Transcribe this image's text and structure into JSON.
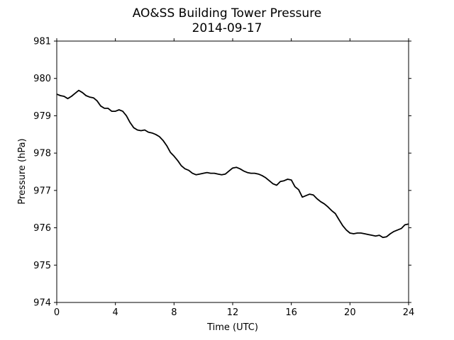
{
  "chart_data": {
    "type": "line",
    "title": "AO&SS Building Tower Pressure",
    "subtitle": "2014-09-17",
    "xlabel": "Time (UTC)",
    "ylabel": "Pressure (hPa)",
    "xlim": [
      0,
      24
    ],
    "ylim": [
      974,
      981
    ],
    "x_ticks": [
      0,
      4,
      8,
      12,
      16,
      20,
      24
    ],
    "y_ticks": [
      974,
      975,
      976,
      977,
      978,
      979,
      980,
      981
    ],
    "grid": false,
    "line_color": "#000000",
    "series": [
      {
        "x": [
          0.0,
          0.25,
          0.5,
          0.75,
          1.0,
          1.25,
          1.5,
          1.75,
          2.0,
          2.25,
          2.5,
          2.75,
          3.0,
          3.25,
          3.5,
          3.75,
          4.0,
          4.25,
          4.5,
          4.75,
          5.0,
          5.25,
          5.5,
          5.75,
          6.0,
          6.25,
          6.5,
          6.75,
          7.0,
          7.25,
          7.5,
          7.75,
          8.0,
          8.25,
          8.5,
          8.75,
          9.0,
          9.25,
          9.5,
          9.75,
          10.0,
          10.25,
          10.5,
          10.75,
          11.0,
          11.25,
          11.5,
          11.75,
          12.0,
          12.25,
          12.5,
          12.75,
          13.0,
          13.25,
          13.5,
          13.75,
          14.0,
          14.25,
          14.5,
          14.75,
          15.0,
          15.25,
          15.5,
          15.75,
          16.0,
          16.25,
          16.5,
          16.75,
          17.0,
          17.25,
          17.5,
          17.75,
          18.0,
          18.25,
          18.5,
          18.75,
          19.0,
          19.25,
          19.5,
          19.75,
          20.0,
          20.25,
          20.5,
          20.75,
          21.0,
          21.25,
          21.5,
          21.75,
          22.0,
          22.25,
          22.5,
          22.75,
          23.0,
          23.25,
          23.5,
          23.75,
          24.0
        ],
        "y": [
          979.58,
          979.54,
          979.52,
          979.46,
          979.52,
          979.6,
          979.68,
          979.62,
          979.54,
          979.5,
          979.48,
          979.4,
          979.26,
          979.2,
          979.2,
          979.12,
          979.12,
          979.16,
          979.12,
          979.0,
          978.82,
          978.68,
          978.62,
          978.6,
          978.62,
          978.56,
          978.54,
          978.5,
          978.44,
          978.34,
          978.2,
          978.02,
          977.92,
          977.8,
          977.66,
          977.58,
          977.54,
          977.46,
          977.42,
          977.44,
          977.46,
          977.48,
          977.46,
          977.46,
          977.44,
          977.42,
          977.44,
          977.52,
          977.6,
          977.62,
          977.58,
          977.52,
          977.48,
          977.46,
          977.46,
          977.44,
          977.4,
          977.34,
          977.26,
          977.18,
          977.14,
          977.24,
          977.26,
          977.3,
          977.28,
          977.1,
          977.02,
          976.82,
          976.86,
          976.9,
          976.88,
          976.78,
          976.7,
          976.64,
          976.56,
          976.46,
          976.38,
          976.22,
          976.06,
          975.94,
          975.86,
          975.84,
          975.86,
          975.86,
          975.84,
          975.82,
          975.8,
          975.78,
          975.8,
          975.74,
          975.76,
          975.84,
          975.9,
          975.94,
          975.98,
          976.08,
          976.1
        ]
      }
    ]
  }
}
